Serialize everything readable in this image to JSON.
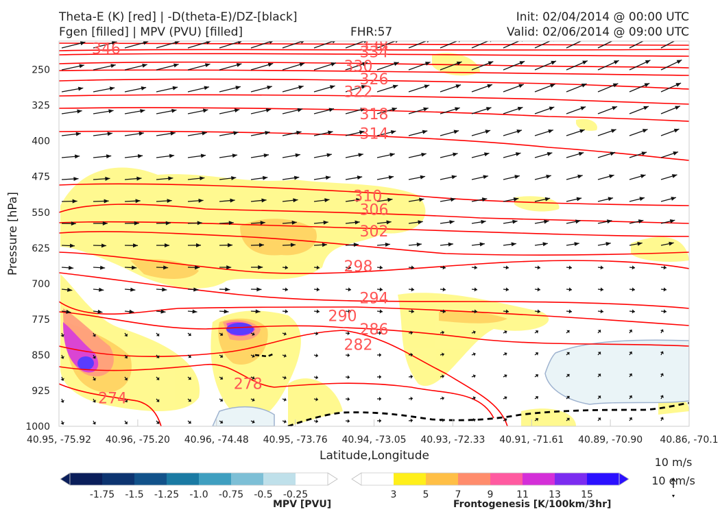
{
  "header": {
    "title_line1": "Theta-E (K) [red] | -D(theta-E)/DZ-[black]",
    "title_line2": "Fgen [filled] | MPV (PVU) [filled]",
    "fhr": "FHR:57",
    "init": "Init: 02/04/2014 @ 00:00 UTC",
    "valid": "Valid: 02/06/2014 @ 09:00 UTC"
  },
  "chart_data": {
    "type": "cross-section",
    "xlabel": "Latitude,Longitude",
    "ylabel": "Pressure [hPa]",
    "x_ticks": [
      "40.95, -75.92",
      "40.96, -75.20",
      "40.96, -74.48",
      "40.95, -73.76",
      "40.94, -73.05",
      "40.93, -72.33",
      "40.91, -71.61",
      "40.89, -70.90",
      "40.86, -70.1"
    ],
    "y_ticks": [
      250,
      325,
      400,
      475,
      550,
      625,
      700,
      775,
      850,
      925,
      1000
    ],
    "ylim": [
      1000,
      190
    ],
    "theta_e_labels": [
      {
        "value": "346",
        "x": 0.075,
        "p": 205
      },
      {
        "value": "338",
        "x": 0.5,
        "p": 198
      },
      {
        "value": "334",
        "x": 0.5,
        "p": 212
      },
      {
        "value": "330",
        "x": 0.475,
        "p": 242
      },
      {
        "value": "326",
        "x": 0.5,
        "p": 269
      },
      {
        "value": "322",
        "x": 0.475,
        "p": 296
      },
      {
        "value": "318",
        "x": 0.5,
        "p": 343
      },
      {
        "value": "314",
        "x": 0.5,
        "p": 384
      },
      {
        "value": "310",
        "x": 0.49,
        "p": 515
      },
      {
        "value": "306",
        "x": 0.5,
        "p": 544
      },
      {
        "value": "302",
        "x": 0.5,
        "p": 589
      },
      {
        "value": "298",
        "x": 0.475,
        "p": 663
      },
      {
        "value": "294",
        "x": 0.5,
        "p": 730
      },
      {
        "value": "290",
        "x": 0.45,
        "p": 767
      },
      {
        "value": "286",
        "x": 0.5,
        "p": 795
      },
      {
        "value": "282",
        "x": 0.475,
        "p": 828
      },
      {
        "value": "278",
        "x": 0.3,
        "p": 910
      },
      {
        "value": "274",
        "x": 0.085,
        "p": 940
      }
    ],
    "wind_key": {
      "speed": "10 m/s",
      "vertical": "10 cm/s"
    },
    "mpv_colorbar": {
      "label": "MPV [PVU]",
      "ticks": [
        "-1.75",
        "-1.5",
        "-1.25",
        "-1.0",
        "-0.75",
        "-0.5",
        "-0.25"
      ],
      "colors": [
        "#0a1e5a",
        "#0d3470",
        "#12528a",
        "#1a7aa3",
        "#3f9fc0",
        "#7dbfd6",
        "#bfe0ea",
        "#ffffff"
      ]
    },
    "fgen_colorbar": {
      "label": "Frontogenesis [K/100km/3hr]",
      "ticks": [
        "3",
        "5",
        "7",
        "9",
        "11",
        "13",
        "15"
      ],
      "colors": [
        "#ffffff",
        "#ffef1a",
        "#ffbf46",
        "#ff8c6c",
        "#ff5aa0",
        "#d42fd8",
        "#7b2cf0",
        "#2b10ff"
      ]
    },
    "colors": {
      "theta_e": "#ff0000",
      "theta_e_label": "#ff5555",
      "arrows": "#111111",
      "pbl": "#000000"
    }
  }
}
